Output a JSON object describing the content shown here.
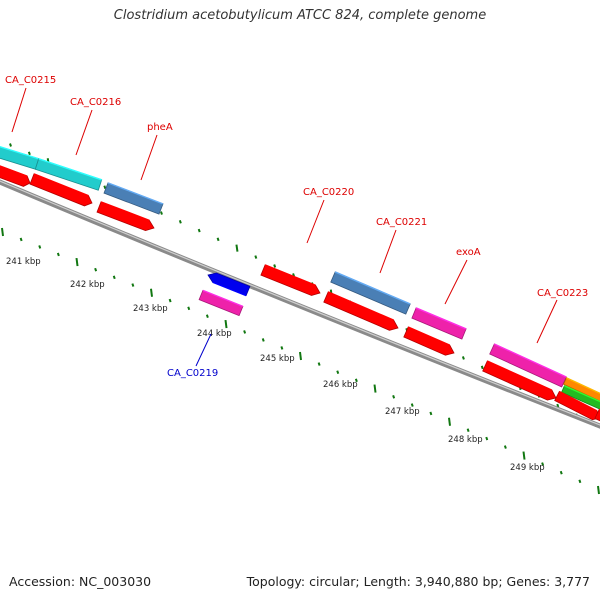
{
  "title": "Clostridium acetobutylicum ATCC 824, complete genome",
  "footer": {
    "accession": "Accession: NC_003030",
    "summary": "Topology: circular; Length: 3,940,880 bp; Genes: 3,777"
  },
  "colors": {
    "label_forward": "#dd0000",
    "label_reverse": "#0000cc",
    "cds_red": "#ff0000",
    "cyan": "#22cccc",
    "steelblue": "#4a7fb5",
    "magenta": "#ee22aa",
    "blue": "#0000ee",
    "orange": "#ff8800",
    "green": "#22bb22",
    "backbone": "#777777",
    "tick": "#117711"
  },
  "scale_labels": [
    "241 kbp",
    "242 kbp",
    "243 kbp",
    "244 kbp",
    "245 kbp",
    "246 kbp",
    "247 kbp",
    "248 kbp",
    "249 kbp"
  ],
  "gene_labels": [
    {
      "name": "CA_C0215",
      "strand": "forward"
    },
    {
      "name": "CA_C0216",
      "strand": "forward"
    },
    {
      "name": "pheA",
      "strand": "forward"
    },
    {
      "name": "CA_C0219",
      "strand": "reverse"
    },
    {
      "name": "CA_C0220",
      "strand": "forward"
    },
    {
      "name": "CA_C0221",
      "strand": "forward"
    },
    {
      "name": "exoA",
      "strand": "forward"
    },
    {
      "name": "CA_C0223",
      "strand": "forward"
    }
  ]
}
